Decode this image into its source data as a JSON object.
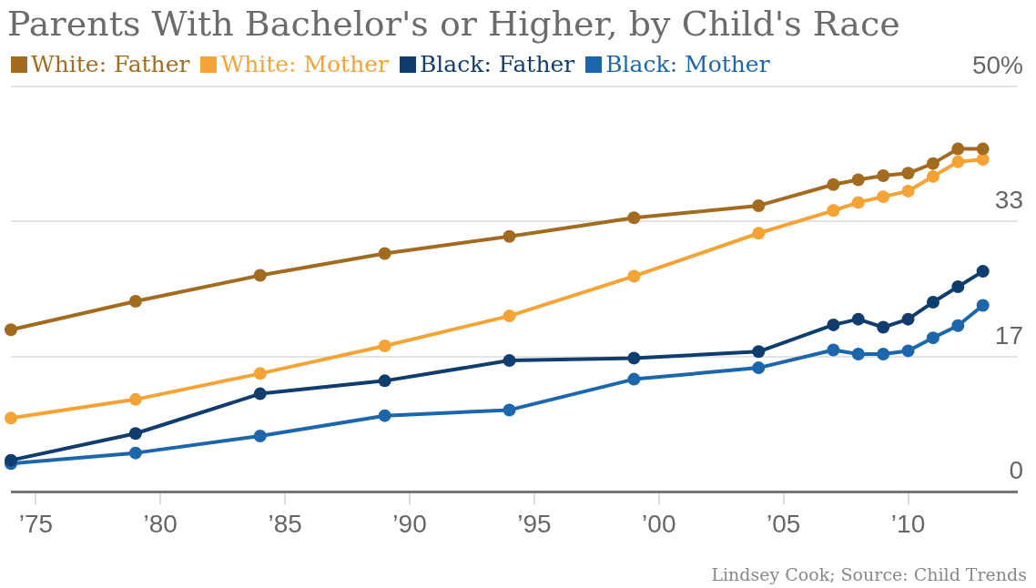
{
  "chart_data": {
    "type": "line",
    "title": "Parents With Bachelor's or Higher, by Child's Race",
    "x": [
      1974,
      1979,
      1984,
      1989,
      1994,
      1999,
      2004,
      2007,
      2008,
      2009,
      2010,
      2011,
      2012,
      2013
    ],
    "series": [
      {
        "name": "White: Father",
        "color": "#a36b1f",
        "values": [
          20.0,
          23.5,
          26.7,
          29.4,
          31.5,
          33.8,
          35.3,
          37.9,
          38.5,
          39.0,
          39.3,
          40.5,
          42.3,
          42.3
        ]
      },
      {
        "name": "White: Mother",
        "color": "#f5a334",
        "values": [
          9.1,
          11.4,
          14.6,
          18.0,
          21.7,
          26.6,
          31.9,
          34.7,
          35.7,
          36.4,
          37.1,
          38.9,
          40.7,
          41.0
        ]
      },
      {
        "name": "Black: Father",
        "color": "#0f3d6e",
        "values": [
          3.9,
          7.2,
          12.1,
          13.7,
          16.2,
          16.5,
          17.3,
          20.6,
          21.3,
          20.3,
          21.3,
          23.4,
          25.3,
          27.2
        ]
      },
      {
        "name": "Black: Mother",
        "color": "#1c66ac",
        "values": [
          3.5,
          4.8,
          6.9,
          9.4,
          10.1,
          13.9,
          15.3,
          17.5,
          17.0,
          17.0,
          17.4,
          19.0,
          20.5,
          23.0
        ]
      }
    ],
    "xlim": [
      1974,
      2014.4
    ],
    "xticks": [
      {
        "value": 1975,
        "label": "’75"
      },
      {
        "value": 1980,
        "label": "’80"
      },
      {
        "value": 1985,
        "label": "’85"
      },
      {
        "value": 1990,
        "label": "’90"
      },
      {
        "value": 1995,
        "label": "’95"
      },
      {
        "value": 2000,
        "label": "’00"
      },
      {
        "value": 2005,
        "label": "’05"
      },
      {
        "value": 2010,
        "label": "’10"
      }
    ],
    "ylim": [
      0,
      50
    ],
    "yticks": [
      0,
      {
        "value": 16.67,
        "label": "17"
      },
      {
        "value": 33.33,
        "label": "33"
      },
      {
        "value": 50,
        "label": "50%"
      }
    ],
    "grid": "y",
    "legend": "top left",
    "marker": "circle",
    "line_style": "solid",
    "annotations": [
      "Lindsey Cook; Source: Child Trends"
    ]
  }
}
